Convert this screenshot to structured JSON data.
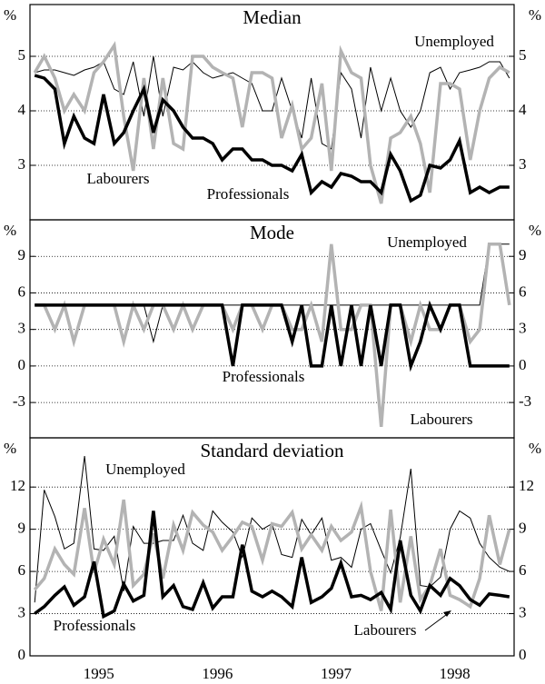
{
  "chart_data": [
    {
      "type": "line",
      "title": "Median",
      "ylabel": "%",
      "x": [
        1994.96,
        1995.04,
        1995.13,
        1995.21,
        1995.29,
        1995.38,
        1995.46,
        1995.54,
        1995.63,
        1995.71,
        1995.79,
        1995.88,
        1995.96,
        1996.04,
        1996.13,
        1996.21,
        1996.29,
        1996.38,
        1996.46,
        1996.54,
        1996.63,
        1996.71,
        1996.79,
        1996.88,
        1996.96,
        1997.04,
        1997.13,
        1997.21,
        1997.29,
        1997.38,
        1997.46,
        1997.54,
        1997.63,
        1997.71,
        1997.79,
        1997.88,
        1997.96,
        1998.04,
        1998.13,
        1998.21,
        1998.29,
        1998.38,
        1998.46,
        1998.54,
        1998.63,
        1998.71,
        1998.79,
        1998.88,
        1998.96
      ],
      "xlim": [
        1994.92,
        1999.0
      ],
      "ylim": [
        2.0,
        5.95
      ],
      "yticks": [
        3,
        4,
        5
      ],
      "grid": true,
      "annotations": [
        "Unemployed",
        "Labourers",
        "Professionals"
      ],
      "series": [
        {
          "name": "Unemployed",
          "color": "#000000",
          "width": 1,
          "values": [
            4.7,
            4.75,
            4.75,
            4.7,
            4.65,
            4.75,
            4.8,
            4.9,
            4.4,
            4.3,
            4.9,
            3.9,
            5.0,
            3.9,
            4.8,
            4.75,
            4.9,
            4.7,
            4.6,
            4.65,
            4.7,
            4.6,
            4.5,
            4.0,
            4.0,
            4.6,
            4.0,
            3.5,
            4.6,
            3.4,
            3.3,
            4.7,
            4.4,
            3.5,
            4.8,
            4.0,
            4.6,
            4.0,
            3.7,
            4.0,
            4.7,
            4.8,
            4.4,
            4.7,
            4.75,
            4.8,
            4.9,
            4.9,
            4.6
          ]
        },
        {
          "name": "Labourers",
          "color": "#b3b3b3",
          "width": 3.5,
          "values": [
            4.7,
            5.0,
            4.6,
            4.0,
            4.3,
            4.0,
            4.7,
            4.9,
            5.2,
            3.9,
            2.9,
            4.6,
            3.3,
            4.6,
            3.4,
            3.3,
            5.0,
            5.0,
            4.8,
            4.7,
            4.6,
            3.7,
            4.7,
            4.7,
            4.6,
            3.5,
            4.1,
            3.3,
            3.5,
            4.5,
            2.9,
            5.1,
            4.7,
            4.6,
            3.0,
            2.3,
            3.5,
            3.6,
            3.9,
            3.4,
            2.5,
            4.5,
            4.5,
            4.4,
            3.1,
            4.0,
            4.6,
            4.8,
            4.7
          ]
        },
        {
          "name": "Professionals",
          "color": "#000000",
          "width": 3.5,
          "values": [
            4.65,
            4.6,
            4.4,
            3.4,
            3.9,
            3.5,
            3.4,
            4.3,
            3.4,
            3.6,
            4.0,
            4.4,
            3.6,
            4.2,
            4.0,
            3.7,
            3.5,
            3.5,
            3.4,
            3.1,
            3.3,
            3.3,
            3.1,
            3.1,
            3.0,
            3.0,
            2.9,
            3.2,
            2.5,
            2.7,
            2.6,
            2.85,
            2.8,
            2.7,
            2.7,
            2.5,
            3.2,
            2.9,
            2.35,
            2.45,
            3.0,
            2.95,
            3.1,
            3.45,
            2.5,
            2.6,
            2.5,
            2.6,
            2.6
          ]
        }
      ]
    },
    {
      "type": "line",
      "title": "Mode",
      "ylabel": "%",
      "x": [
        1994.96,
        1995.04,
        1995.13,
        1995.21,
        1995.29,
        1995.38,
        1995.46,
        1995.54,
        1995.63,
        1995.71,
        1995.79,
        1995.88,
        1995.96,
        1996.04,
        1996.13,
        1996.21,
        1996.29,
        1996.38,
        1996.46,
        1996.54,
        1996.63,
        1996.71,
        1996.79,
        1996.88,
        1996.96,
        1997.04,
        1997.13,
        1997.21,
        1997.29,
        1997.38,
        1997.46,
        1997.54,
        1997.63,
        1997.71,
        1997.79,
        1997.88,
        1997.96,
        1998.04,
        1998.13,
        1998.21,
        1998.29,
        1998.38,
        1998.46,
        1998.54,
        1998.63,
        1998.71,
        1998.79,
        1998.88,
        1998.96
      ],
      "xlim": [
        1994.92,
        1999.0
      ],
      "ylim": [
        -5.9,
        12
      ],
      "yticks": [
        -3,
        0,
        3,
        6,
        9
      ],
      "grid": true,
      "annotations": [
        "Unemployed",
        "Professionals",
        "Labourers"
      ],
      "series": [
        {
          "name": "Unemployed",
          "color": "#000000",
          "width": 1,
          "values": [
            5,
            5,
            5,
            5,
            5,
            5,
            5,
            5,
            5,
            5,
            5,
            5,
            2,
            5,
            5,
            5,
            5,
            5,
            5,
            5,
            5,
            5,
            5,
            5,
            5,
            5,
            5,
            5,
            5,
            5,
            5,
            5,
            5,
            5,
            5,
            5,
            5,
            5,
            5,
            5,
            5,
            5,
            5,
            5,
            5,
            5,
            10,
            10,
            10
          ]
        },
        {
          "name": "Labourers",
          "color": "#b3b3b3",
          "width": 3.5,
          "values": [
            5,
            5,
            3,
            5,
            2,
            5,
            5,
            5,
            5,
            2,
            5,
            3,
            5,
            5,
            3,
            5,
            3,
            5,
            5,
            5,
            3,
            5,
            5,
            3,
            5,
            5,
            3,
            3,
            5,
            2,
            10,
            3,
            3,
            5,
            5,
            -5,
            5,
            5,
            2,
            5,
            3,
            3,
            5,
            5,
            2,
            3,
            10,
            10,
            5
          ]
        },
        {
          "name": "Professionals",
          "color": "#000000",
          "width": 3.5,
          "values": [
            5,
            5,
            5,
            5,
            5,
            5,
            5,
            5,
            5,
            5,
            5,
            5,
            5,
            5,
            5,
            5,
            5,
            5,
            5,
            5,
            0,
            5,
            5,
            5,
            5,
            5,
            2,
            5,
            0,
            0,
            5,
            0,
            5,
            0,
            5,
            0,
            5,
            5,
            0,
            2,
            5,
            3,
            5,
            5,
            0,
            0,
            0,
            0,
            0
          ]
        }
      ]
    },
    {
      "type": "line",
      "title": "Standard deviation",
      "ylabel": "%",
      "x": [
        1994.96,
        1995.04,
        1995.13,
        1995.21,
        1995.29,
        1995.38,
        1995.46,
        1995.54,
        1995.63,
        1995.71,
        1995.79,
        1995.88,
        1995.96,
        1996.04,
        1996.13,
        1996.21,
        1996.29,
        1996.38,
        1996.46,
        1996.54,
        1996.63,
        1996.71,
        1996.79,
        1996.88,
        1996.96,
        1997.04,
        1997.13,
        1997.21,
        1997.29,
        1997.38,
        1997.46,
        1997.54,
        1997.63,
        1997.71,
        1997.79,
        1997.88,
        1997.96,
        1998.04,
        1998.13,
        1998.21,
        1998.29,
        1998.38,
        1998.46,
        1998.54,
        1998.63,
        1998.71,
        1998.79,
        1998.88,
        1998.96
      ],
      "xlim": [
        1994.92,
        1999.0
      ],
      "ylim": [
        0,
        15.5
      ],
      "yticks": [
        0,
        3,
        6,
        9,
        12
      ],
      "grid": true,
      "xticks": [
        {
          "value": 1995.5,
          "label": "1995"
        },
        {
          "value": 1996.5,
          "label": "1996"
        },
        {
          "value": 1997.5,
          "label": "1997"
        },
        {
          "value": 1998.5,
          "label": "1998"
        }
      ],
      "annotations": [
        "Unemployed",
        "Professionals",
        "Labourers"
      ],
      "series": [
        {
          "name": "Unemployed",
          "color": "#000000",
          "width": 1,
          "values": [
            3.8,
            11.8,
            9.9,
            7.6,
            8,
            14.2,
            7.6,
            7.5,
            8.5,
            4.6,
            9.2,
            8,
            8,
            8.2,
            8.2,
            10,
            8,
            7.5,
            10.3,
            9.5,
            8.8,
            7,
            9.8,
            9,
            9.4,
            7.2,
            7,
            9.7,
            8.6,
            9.8,
            6.8,
            7,
            6.3,
            9,
            9.4,
            7.5,
            5.9,
            8.4,
            13.3,
            5,
            4.9,
            5.6,
            9,
            10.3,
            9.8,
            8,
            7,
            6.3,
            6
          ]
        },
        {
          "name": "Labourers",
          "color": "#b3b3b3",
          "width": 3.5,
          "values": [
            4.7,
            5.5,
            7.6,
            6.5,
            5.8,
            10.5,
            5.9,
            8.3,
            6.5,
            11.1,
            5,
            5.8,
            8.7,
            5.5,
            9.3,
            7.5,
            10.2,
            9.3,
            8.8,
            7.5,
            8.5,
            9.5,
            9.2,
            6.8,
            9.4,
            9.2,
            10.2,
            7.6,
            8.6,
            7.5,
            9.2,
            8.2,
            8.8,
            10.6,
            6,
            3.2,
            10.4,
            3.8,
            8.5,
            4,
            5,
            7.6,
            4.3,
            4,
            3.5,
            5.5,
            10,
            6.5,
            9
          ]
        },
        {
          "name": "Professionals",
          "color": "#000000",
          "width": 3.5,
          "values": [
            3,
            3.5,
            4.3,
            4.9,
            3.6,
            4.2,
            6.7,
            2.8,
            3.2,
            5.1,
            3.9,
            4.3,
            10.3,
            4.2,
            5,
            3.5,
            3.3,
            5.2,
            3.4,
            4.2,
            4.2,
            7.9,
            4.6,
            4.2,
            4.6,
            4.2,
            3.5,
            7,
            3.8,
            4.2,
            4.8,
            6.6,
            4.2,
            4.3,
            4,
            4.5,
            3.3,
            8.2,
            4.3,
            3.2,
            5,
            4.3,
            5.5,
            5,
            4,
            3.6,
            4.4,
            4.3,
            4.2
          ]
        }
      ]
    }
  ]
}
